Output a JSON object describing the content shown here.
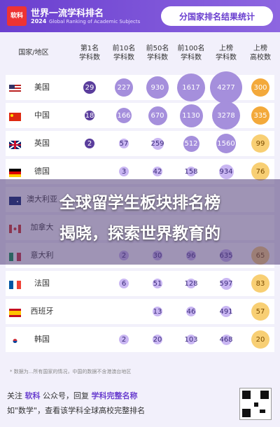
{
  "header": {
    "logo_text_1": "软科",
    "title": "世界一流学科排名",
    "year": "2024",
    "subtitle": "Global Ranking of Academic Subjects",
    "badge": "分国家排名结果统计"
  },
  "columns": [
    "国家/地区",
    "第1名\n学科数",
    "前10名\n学科数",
    "前50名\n学科数",
    "前100名\n学科数",
    "上榜\n学科数",
    "上榜\n高校数"
  ],
  "rows": [
    {
      "country": "美国",
      "flag": "us",
      "v": [
        "29",
        "227",
        "930",
        "1617",
        "4277",
        "300"
      ]
    },
    {
      "country": "中国",
      "flag": "cn",
      "v": [
        "18",
        "166",
        "670",
        "1130",
        "3278",
        "335"
      ]
    },
    {
      "country": "英国",
      "flag": "gb",
      "v": [
        "2",
        "57",
        "259",
        "512",
        "1560",
        "99"
      ]
    },
    {
      "country": "德国",
      "flag": "de",
      "v": [
        "",
        "3",
        "42",
        "158",
        "934",
        "76"
      ]
    },
    {
      "country": "澳大利亚",
      "flag": "au",
      "v": [
        "",
        "",
        "",
        "",
        "",
        ""
      ]
    },
    {
      "country": "加拿大",
      "flag": "ca",
      "v": [
        "",
        "",
        "",
        "",
        "",
        ""
      ]
    },
    {
      "country": "意大利",
      "flag": "it",
      "v": [
        "",
        "2",
        "30",
        "96",
        "635",
        "65"
      ]
    },
    {
      "country": "法国",
      "flag": "fr",
      "v": [
        "",
        "6",
        "51",
        "128",
        "597",
        "83"
      ]
    },
    {
      "country": "西班牙",
      "flag": "es",
      "v": [
        "",
        "",
        "13",
        "46",
        "491",
        "57"
      ]
    },
    {
      "country": "韩国",
      "flag": "kr",
      "v": [
        "",
        "2",
        "20",
        "103",
        "468",
        "20"
      ]
    }
  ],
  "overlay": {
    "line1": "全球留学生板块排名榜",
    "line2": "揭晓，探索世界教育的"
  },
  "note": "* 数据为...所有国家的情况，中国的数据不含港澳台地区",
  "footer": {
    "line1_a": "关注",
    "line1_b": "软科",
    "line1_c": "公众号，回复",
    "line1_d": "学科完整名称",
    "line2": "如\"数学\"，查看该学科全球高校完整排名"
  },
  "colors": {
    "accent": "#6a3fcf",
    "orange": "#f3a93b"
  }
}
